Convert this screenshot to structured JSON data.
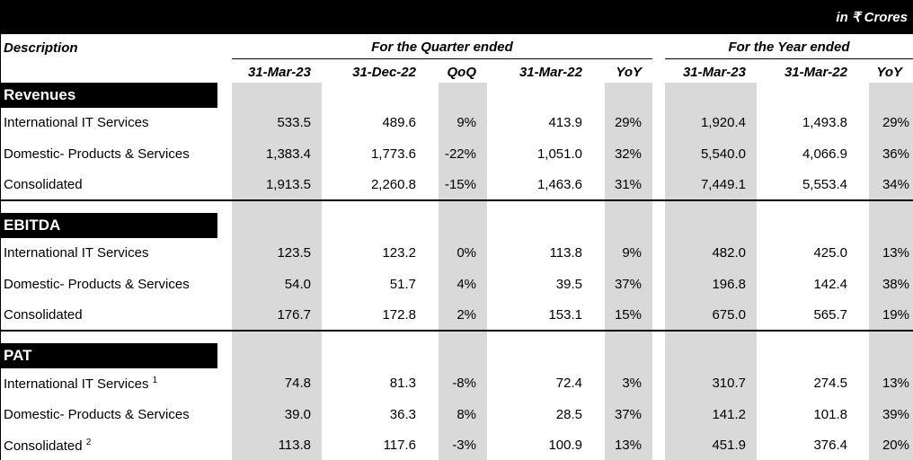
{
  "header": {
    "unit": "in ₹ Crores",
    "description": "Description",
    "quarter_group": "For the Quarter ended",
    "year_group": "For the Year ended",
    "columns": [
      "31-Mar-23",
      "31-Dec-22",
      "QoQ",
      "31-Mar-22",
      "YoY",
      "31-Mar-23",
      "31-Mar-22",
      "YoY"
    ]
  },
  "sections": [
    {
      "title": "Revenues",
      "rows": [
        {
          "label": "International IT Services",
          "values": [
            "533.5",
            "489.6",
            "9%",
            "413.9",
            "29%",
            "1,920.4",
            "1,493.8",
            "29%"
          ]
        },
        {
          "label": "Domestic- Products & Services",
          "values": [
            "1,383.4",
            "1,773.6",
            "-22%",
            "1,051.0",
            "32%",
            "5,540.0",
            "4,066.9",
            "36%"
          ]
        },
        {
          "label": "Consolidated",
          "values": [
            "1,913.5",
            "2,260.8",
            "-15%",
            "1,463.6",
            "31%",
            "7,449.1",
            "5,553.4",
            "34%"
          ]
        }
      ]
    },
    {
      "title": "EBITDA",
      "rows": [
        {
          "label": "International IT Services",
          "values": [
            "123.5",
            "123.2",
            "0%",
            "113.8",
            "9%",
            "482.0",
            "425.0",
            "13%"
          ]
        },
        {
          "label": "Domestic- Products & Services",
          "values": [
            "54.0",
            "51.7",
            "4%",
            "39.5",
            "37%",
            "196.8",
            "142.4",
            "38%"
          ]
        },
        {
          "label": "Consolidated",
          "values": [
            "176.7",
            "172.8",
            "2%",
            "153.1",
            "15%",
            "675.0",
            "565.7",
            "19%"
          ]
        }
      ]
    },
    {
      "title": "PAT",
      "rows": [
        {
          "label": "International IT Services",
          "note": "1",
          "values": [
            "74.8",
            "81.3",
            "-8%",
            "72.4",
            "3%",
            "310.7",
            "274.5",
            "13%"
          ]
        },
        {
          "label": "Domestic- Products & Services",
          "values": [
            "39.0",
            "36.3",
            "8%",
            "28.5",
            "37%",
            "141.2",
            "101.8",
            "39%"
          ]
        },
        {
          "label": "Consolidated",
          "note": "2",
          "values": [
            "113.8",
            "117.6",
            "-3%",
            "100.9",
            "13%",
            "451.9",
            "376.4",
            "20%"
          ]
        }
      ]
    }
  ]
}
